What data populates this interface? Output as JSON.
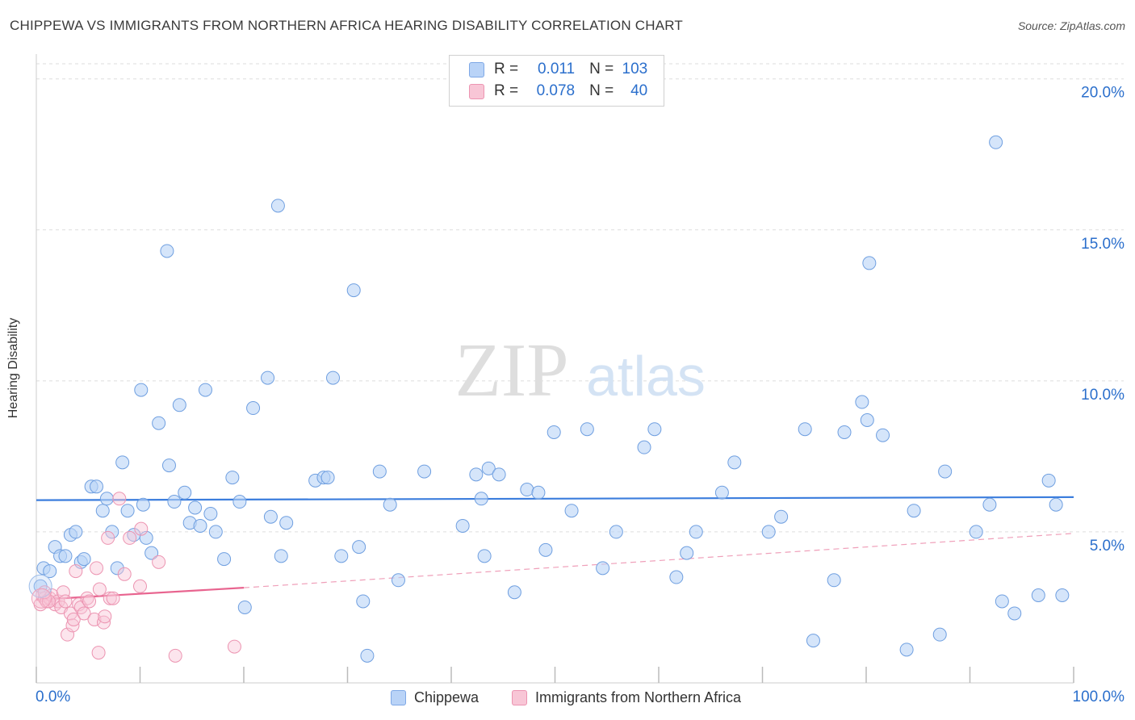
{
  "title": "CHIPPEWA VS IMMIGRANTS FROM NORTHERN AFRICA HEARING DISABILITY CORRELATION CHART",
  "source": "Source: ZipAtlas.com",
  "watermark": {
    "zip": "ZIP",
    "atlas": "atlas"
  },
  "stats": {
    "r_label": "R =",
    "n_label": "N =",
    "chippewa": {
      "r": "0.011",
      "n": "103"
    },
    "immigrants": {
      "r": "0.078",
      "n": "40"
    }
  },
  "legend": {
    "chippewa": "Chippewa",
    "immigrants": "Immigrants from Northern Africa"
  },
  "colors": {
    "chippewa": "#3b7ddd",
    "immigrants": "#e8648f",
    "axis_label": "#2b6fcc"
  },
  "chart_data": {
    "type": "scatter",
    "ylabel": "Hearing Disability",
    "xlim": [
      0,
      100
    ],
    "ylim": [
      0,
      20.5
    ],
    "x_tick_labels": [
      "0.0%",
      "100.0%"
    ],
    "y_ticks": [
      5,
      10,
      15,
      20
    ],
    "y_tick_labels": [
      "5.0%",
      "10.0%",
      "15.0%",
      "20.0%"
    ],
    "grid": true,
    "series": [
      {
        "name": "Chippewa",
        "trend": {
          "x": [
            0,
            100
          ],
          "y": [
            6.05,
            6.15
          ],
          "style": "solid"
        },
        "points": [
          [
            0.7,
            3.8
          ],
          [
            1.3,
            3.7
          ],
          [
            1.8,
            4.5
          ],
          [
            2.3,
            4.2
          ],
          [
            2.8,
            4.2
          ],
          [
            3.3,
            4.9
          ],
          [
            3.8,
            5.0
          ],
          [
            4.3,
            4.0
          ],
          [
            4.6,
            4.1
          ],
          [
            5.3,
            6.5
          ],
          [
            5.8,
            6.5
          ],
          [
            6.4,
            5.7
          ],
          [
            6.8,
            6.1
          ],
          [
            7.3,
            5.0
          ],
          [
            7.8,
            3.8
          ],
          [
            8.3,
            7.3
          ],
          [
            8.8,
            5.7
          ],
          [
            9.4,
            4.9
          ],
          [
            10.1,
            9.7
          ],
          [
            10.3,
            5.9
          ],
          [
            10.6,
            4.8
          ],
          [
            11.1,
            4.3
          ],
          [
            11.8,
            8.6
          ],
          [
            12.6,
            14.3
          ],
          [
            12.8,
            7.2
          ],
          [
            13.3,
            6.0
          ],
          [
            13.8,
            9.2
          ],
          [
            14.3,
            6.3
          ],
          [
            14.8,
            5.3
          ],
          [
            15.3,
            5.8
          ],
          [
            15.8,
            5.2
          ],
          [
            16.3,
            9.7
          ],
          [
            16.8,
            5.6
          ],
          [
            17.3,
            5.0
          ],
          [
            18.1,
            4.1
          ],
          [
            18.9,
            6.8
          ],
          [
            19.6,
            6.0
          ],
          [
            20.1,
            2.5
          ],
          [
            20.9,
            9.1
          ],
          [
            22.3,
            10.1
          ],
          [
            22.6,
            5.5
          ],
          [
            23.3,
            15.8
          ],
          [
            23.6,
            4.2
          ],
          [
            24.1,
            5.3
          ],
          [
            26.9,
            6.7
          ],
          [
            27.7,
            6.8
          ],
          [
            28.1,
            6.8
          ],
          [
            28.6,
            10.1
          ],
          [
            29.4,
            4.2
          ],
          [
            30.6,
            13.0
          ],
          [
            31.1,
            4.5
          ],
          [
            31.5,
            2.7
          ],
          [
            31.9,
            0.9
          ],
          [
            33.1,
            7.0
          ],
          [
            34.1,
            5.9
          ],
          [
            34.9,
            3.4
          ],
          [
            37.4,
            7.0
          ],
          [
            41.1,
            5.2
          ],
          [
            42.4,
            6.9
          ],
          [
            42.9,
            6.1
          ],
          [
            43.2,
            4.2
          ],
          [
            43.6,
            7.1
          ],
          [
            44.6,
            6.9
          ],
          [
            46.1,
            3.0
          ],
          [
            47.3,
            6.4
          ],
          [
            48.4,
            6.3
          ],
          [
            49.1,
            4.4
          ],
          [
            49.9,
            8.3
          ],
          [
            51.6,
            5.7
          ],
          [
            53.1,
            8.4
          ],
          [
            54.6,
            3.8
          ],
          [
            55.9,
            5.0
          ],
          [
            58.6,
            7.8
          ],
          [
            59.6,
            8.4
          ],
          [
            61.7,
            3.5
          ],
          [
            62.7,
            4.3
          ],
          [
            63.6,
            5.0
          ],
          [
            66.1,
            6.3
          ],
          [
            67.3,
            7.3
          ],
          [
            70.6,
            5.0
          ],
          [
            71.8,
            5.5
          ],
          [
            74.1,
            8.4
          ],
          [
            74.9,
            1.4
          ],
          [
            76.9,
            3.4
          ],
          [
            77.9,
            8.3
          ],
          [
            79.6,
            9.3
          ],
          [
            80.1,
            8.7
          ],
          [
            80.3,
            13.9
          ],
          [
            81.6,
            8.2
          ],
          [
            83.9,
            1.1
          ],
          [
            84.6,
            5.7
          ],
          [
            87.1,
            1.6
          ],
          [
            87.6,
            7.0
          ],
          [
            90.6,
            5.0
          ],
          [
            91.9,
            5.9
          ],
          [
            92.5,
            17.9
          ],
          [
            93.1,
            2.7
          ],
          [
            94.3,
            2.3
          ],
          [
            96.6,
            2.9
          ],
          [
            97.6,
            6.7
          ],
          [
            98.3,
            5.9
          ],
          [
            98.9,
            2.9
          ],
          [
            0.4,
            3.2
          ]
        ]
      },
      {
        "name": "Immigrants from Northern Africa",
        "trend": {
          "x": [
            0,
            20
          ],
          "y": [
            2.75,
            3.15
          ],
          "style": "solid",
          "extended_to": [
            100,
            4.95
          ],
          "extended_style": "dashed"
        },
        "points": [
          [
            0.4,
            2.6
          ],
          [
            0.6,
            2.9
          ],
          [
            0.8,
            2.8
          ],
          [
            1.0,
            2.7
          ],
          [
            1.3,
            2.8
          ],
          [
            1.5,
            2.9
          ],
          [
            1.8,
            2.6
          ],
          [
            2.1,
            2.7
          ],
          [
            2.4,
            2.5
          ],
          [
            2.6,
            3.0
          ],
          [
            2.8,
            2.7
          ],
          [
            3.0,
            1.6
          ],
          [
            3.3,
            2.3
          ],
          [
            3.5,
            1.9
          ],
          [
            3.6,
            2.1
          ],
          [
            3.8,
            3.7
          ],
          [
            4.1,
            2.6
          ],
          [
            4.3,
            2.5
          ],
          [
            4.6,
            2.3
          ],
          [
            4.9,
            2.8
          ],
          [
            5.1,
            2.7
          ],
          [
            5.6,
            2.1
          ],
          [
            5.8,
            3.8
          ],
          [
            6.0,
            1.0
          ],
          [
            6.1,
            3.1
          ],
          [
            6.5,
            2.0
          ],
          [
            6.6,
            2.2
          ],
          [
            6.9,
            4.8
          ],
          [
            7.1,
            2.8
          ],
          [
            7.4,
            2.8
          ],
          [
            8.0,
            6.1
          ],
          [
            8.5,
            3.6
          ],
          [
            9.0,
            4.8
          ],
          [
            10.0,
            3.2
          ],
          [
            10.1,
            5.1
          ],
          [
            11.8,
            4.0
          ],
          [
            13.4,
            0.9
          ],
          [
            19.1,
            1.2
          ],
          [
            1.2,
            2.7
          ],
          [
            0.8,
            3.0
          ]
        ]
      }
    ]
  }
}
